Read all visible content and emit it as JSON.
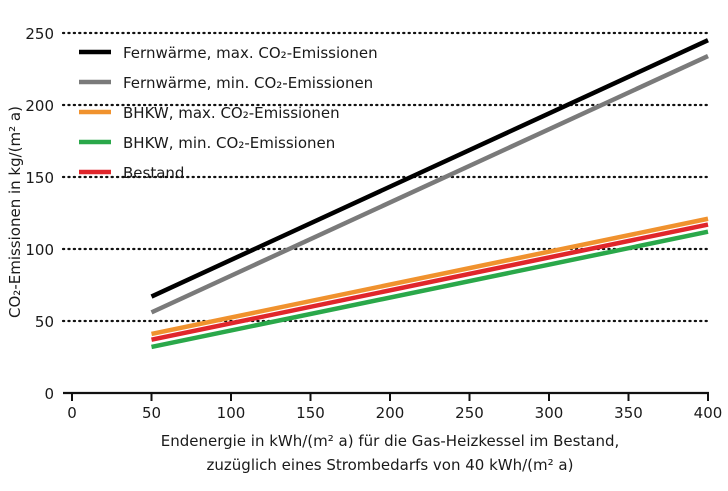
{
  "chart_data": {
    "type": "line",
    "title": "",
    "ylabel": "CO₂-Emissionen in kg/(m² a)",
    "xlabel_lines": [
      "Endenergie in kWh/(m² a) für die Gas-Heizkessel im Bestand,",
      "zuzüglich eines Strombedarfs von 40 kWh/(m² a)"
    ],
    "xlim": [
      0,
      400
    ],
    "ylim": [
      0,
      250
    ],
    "x_ticks": [
      0,
      50,
      100,
      150,
      200,
      250,
      300,
      350,
      400
    ],
    "y_ticks": [
      0,
      50,
      100,
      150,
      200,
      250
    ],
    "grid": "horizontal dotted",
    "legend_position": "top-left",
    "series": [
      {
        "name": "Fernwärme, max. CO₂-Emissionen",
        "color": "#000000",
        "x": [
          50,
          400
        ],
        "y": [
          67,
          245
        ]
      },
      {
        "name": "Fernwärme, min. CO₂-Emissionen",
        "color": "#7a7a7a",
        "x": [
          50,
          400
        ],
        "y": [
          56,
          234
        ]
      },
      {
        "name": "BHKW, max. CO₂-Emissionen",
        "color": "#f0922e",
        "x": [
          50,
          400
        ],
        "y": [
          41,
          121
        ]
      },
      {
        "name": "BHKW, min. CO₂-Emissionen",
        "color": "#2aa84a",
        "x": [
          50,
          400
        ],
        "y": [
          32,
          112
        ]
      },
      {
        "name": "Bestand",
        "color": "#e0262b",
        "x": [
          50,
          400
        ],
        "y": [
          37,
          117
        ]
      }
    ]
  }
}
